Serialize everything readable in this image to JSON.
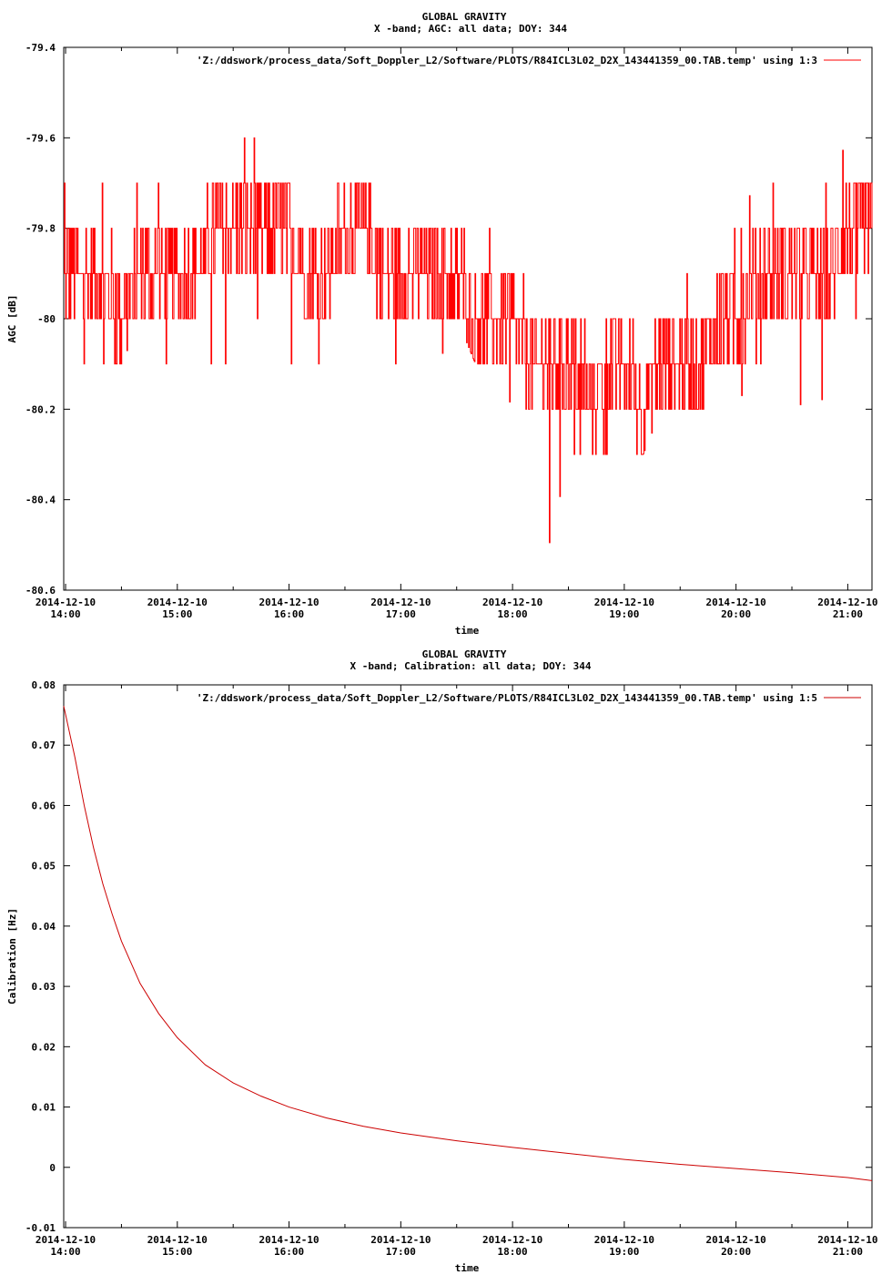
{
  "page": {
    "background": "#ffffff"
  },
  "chart_data": [
    {
      "type": "line",
      "title": "GLOBAL GRAVITY",
      "subtitle": "X -band; AGC: all data; DOY: 344",
      "xlabel": "time",
      "ylabel": "AGC [dB]",
      "legend": {
        "label": "'Z:/ddswork/process_data/Soft_Doppler_L2/Software/PLOTS/R84ICL3L02_D2X_143441359_00.TAB.temp' using 1:3",
        "position": "top-right"
      },
      "color": "#ff0000",
      "line_style": "step",
      "grid": false,
      "xlim": [
        "2014-12-10 13:59",
        "2014-12-10 21:13"
      ],
      "ylim": [
        -80.6,
        -79.4
      ],
      "x_ticks": [
        {
          "value": "2014-12-10 14:00",
          "date": "2014-12-10",
          "time": "14:00"
        },
        {
          "value": "2014-12-10 15:00",
          "date": "2014-12-10",
          "time": "15:00"
        },
        {
          "value": "2014-12-10 16:00",
          "date": "2014-12-10",
          "time": "16:00"
        },
        {
          "value": "2014-12-10 17:00",
          "date": "2014-12-10",
          "time": "17:00"
        },
        {
          "value": "2014-12-10 18:00",
          "date": "2014-12-10",
          "time": "18:00"
        },
        {
          "value": "2014-12-10 19:00",
          "date": "2014-12-10",
          "time": "19:00"
        },
        {
          "value": "2014-12-10 20:00",
          "date": "2014-12-10",
          "time": "20:00"
        },
        {
          "value": "2014-12-10 21:00",
          "date": "2014-12-10",
          "time": "21:00"
        }
      ],
      "y_ticks": [
        {
          "value": -79.4,
          "label": "-79.4"
        },
        {
          "value": -79.6,
          "label": "-79.6"
        },
        {
          "value": -79.8,
          "label": "-79.8"
        },
        {
          "value": -80.0,
          "label": "-80"
        },
        {
          "value": -80.2,
          "label": "-80.2"
        },
        {
          "value": -80.4,
          "label": "-80.4"
        },
        {
          "value": -80.6,
          "label": "-80.6"
        }
      ],
      "series": [
        {
          "x": [
            "2014-12-10 13:59",
            "2014-12-10 14:10",
            "2014-12-10 14:20",
            "2014-12-10 14:30",
            "2014-12-10 14:40",
            "2014-12-10 14:50",
            "2014-12-10 15:00",
            "2014-12-10 15:10",
            "2014-12-10 15:20",
            "2014-12-10 15:30",
            "2014-12-10 15:40",
            "2014-12-10 15:50",
            "2014-12-10 16:00",
            "2014-12-10 16:10",
            "2014-12-10 16:20",
            "2014-12-10 16:30",
            "2014-12-10 16:40",
            "2014-12-10 16:50",
            "2014-12-10 17:00",
            "2014-12-10 17:10",
            "2014-12-10 17:20",
            "2014-12-10 17:30",
            "2014-12-10 17:40",
            "2014-12-10 17:50",
            "2014-12-10 18:00",
            "2014-12-10 18:10",
            "2014-12-10 18:20",
            "2014-12-10 18:30",
            "2014-12-10 18:40",
            "2014-12-10 18:50",
            "2014-12-10 19:00",
            "2014-12-10 19:10",
            "2014-12-10 19:20",
            "2014-12-10 19:30",
            "2014-12-10 19:40",
            "2014-12-10 19:50",
            "2014-12-10 20:00",
            "2014-12-10 20:10",
            "2014-12-10 20:20",
            "2014-12-10 20:30",
            "2014-12-10 20:40",
            "2014-12-10 20:50",
            "2014-12-10 21:00",
            "2014-12-10 21:10"
          ],
          "center": [
            -79.9,
            -79.9,
            -79.9,
            -80.0,
            -79.9,
            -79.9,
            -79.9,
            -79.9,
            -79.8,
            -79.8,
            -79.8,
            -79.8,
            -79.8,
            -79.9,
            -79.9,
            -79.8,
            -79.8,
            -79.9,
            -79.9,
            -79.9,
            -79.9,
            -79.9,
            -80.0,
            -80.0,
            -80.0,
            -80.1,
            -80.1,
            -80.1,
            -80.2,
            -80.1,
            -80.1,
            -80.2,
            -80.1,
            -80.1,
            -80.1,
            -80.0,
            -80.0,
            -79.9,
            -79.9,
            -79.9,
            -79.9,
            -79.9,
            -79.8,
            -79.8
          ],
          "high": [
            -79.7,
            -79.6,
            -79.7,
            -79.7,
            -79.7,
            -79.7,
            -79.7,
            -79.7,
            -79.6,
            -79.6,
            -79.6,
            -79.6,
            -79.6,
            -79.7,
            -79.7,
            -79.6,
            -79.5,
            -79.6,
            -79.7,
            -79.6,
            -79.7,
            -79.7,
            -79.8,
            -79.8,
            -79.8,
            -79.9,
            -79.7,
            -79.9,
            -80.0,
            -79.9,
            -80.0,
            -80.0,
            -80.0,
            -79.9,
            -79.9,
            -79.8,
            -79.8,
            -79.7,
            -79.7,
            -79.7,
            -79.6,
            -79.7,
            -79.6,
            -79.6
          ],
          "low": [
            -80.1,
            -80.1,
            -80.1,
            -80.1,
            -80.0,
            -80.1,
            -80.2,
            -80.2,
            -80.1,
            -80.1,
            -80.0,
            -80.0,
            -80.1,
            -80.2,
            -80.1,
            -80.0,
            -80.0,
            -80.1,
            -80.1,
            -80.1,
            -80.1,
            -80.0,
            -80.1,
            -80.1,
            -80.2,
            -80.3,
            -80.5,
            -80.3,
            -80.3,
            -80.3,
            -80.3,
            -80.3,
            -80.2,
            -80.3,
            -80.2,
            -80.2,
            -80.2,
            -80.1,
            -80.1,
            -80.1,
            -80.3,
            -80.1,
            -80.0,
            -80.0
          ]
        }
      ]
    },
    {
      "type": "line",
      "title": "GLOBAL GRAVITY",
      "subtitle": "X -band; Calibration: all data; DOY: 344",
      "xlabel": "time",
      "ylabel": "Calibration [Hz]",
      "legend": {
        "label": "'Z:/ddswork/process_data/Soft_Doppler_L2/Software/PLOTS/R84ICL3L02_D2X_143441359_00.TAB.temp' using 1:5",
        "position": "top-right"
      },
      "color": "#cc0000",
      "grid": false,
      "xlim": [
        "2014-12-10 13:59",
        "2014-12-10 21:13"
      ],
      "ylim": [
        -0.01,
        0.08
      ],
      "x_ticks": [
        {
          "value": "2014-12-10 14:00",
          "date": "2014-12-10",
          "time": "14:00"
        },
        {
          "value": "2014-12-10 15:00",
          "date": "2014-12-10",
          "time": "15:00"
        },
        {
          "value": "2014-12-10 16:00",
          "date": "2014-12-10",
          "time": "16:00"
        },
        {
          "value": "2014-12-10 17:00",
          "date": "2014-12-10",
          "time": "17:00"
        },
        {
          "value": "2014-12-10 18:00",
          "date": "2014-12-10",
          "time": "18:00"
        },
        {
          "value": "2014-12-10 19:00",
          "date": "2014-12-10",
          "time": "19:00"
        },
        {
          "value": "2014-12-10 20:00",
          "date": "2014-12-10",
          "time": "20:00"
        },
        {
          "value": "2014-12-10 21:00",
          "date": "2014-12-10",
          "time": "21:00"
        }
      ],
      "y_ticks": [
        {
          "value": 0.08,
          "label": "0.08"
        },
        {
          "value": 0.07,
          "label": "0.07"
        },
        {
          "value": 0.06,
          "label": "0.06"
        },
        {
          "value": 0.05,
          "label": "0.05"
        },
        {
          "value": 0.04,
          "label": "0.04"
        },
        {
          "value": 0.03,
          "label": "0.03"
        },
        {
          "value": 0.02,
          "label": "0.02"
        },
        {
          "value": 0.01,
          "label": "0.01"
        },
        {
          "value": 0.0,
          "label": "0"
        },
        {
          "value": -0.01,
          "label": "-0.01"
        }
      ],
      "series": [
        {
          "x": [
            "2014-12-10 13:59",
            "2014-12-10 14:05",
            "2014-12-10 14:10",
            "2014-12-10 14:15",
            "2014-12-10 14:20",
            "2014-12-10 14:25",
            "2014-12-10 14:30",
            "2014-12-10 14:40",
            "2014-12-10 14:50",
            "2014-12-10 15:00",
            "2014-12-10 15:15",
            "2014-12-10 15:30",
            "2014-12-10 15:45",
            "2014-12-10 16:00",
            "2014-12-10 16:20",
            "2014-12-10 16:40",
            "2014-12-10 17:00",
            "2014-12-10 17:30",
            "2014-12-10 18:00",
            "2014-12-10 18:30",
            "2014-12-10 19:00",
            "2014-12-10 19:30",
            "2014-12-10 20:00",
            "2014-12-10 20:30",
            "2014-12-10 21:00",
            "2014-12-10 21:13"
          ],
          "values": [
            0.0765,
            0.068,
            0.06,
            0.053,
            0.047,
            0.042,
            0.0375,
            0.0305,
            0.0255,
            0.0215,
            0.017,
            0.014,
            0.0118,
            0.01,
            0.0082,
            0.0068,
            0.0057,
            0.0044,
            0.0033,
            0.0023,
            0.0013,
            0.0005,
            -0.0002,
            -0.0009,
            -0.0017,
            -0.0022
          ]
        }
      ]
    }
  ]
}
